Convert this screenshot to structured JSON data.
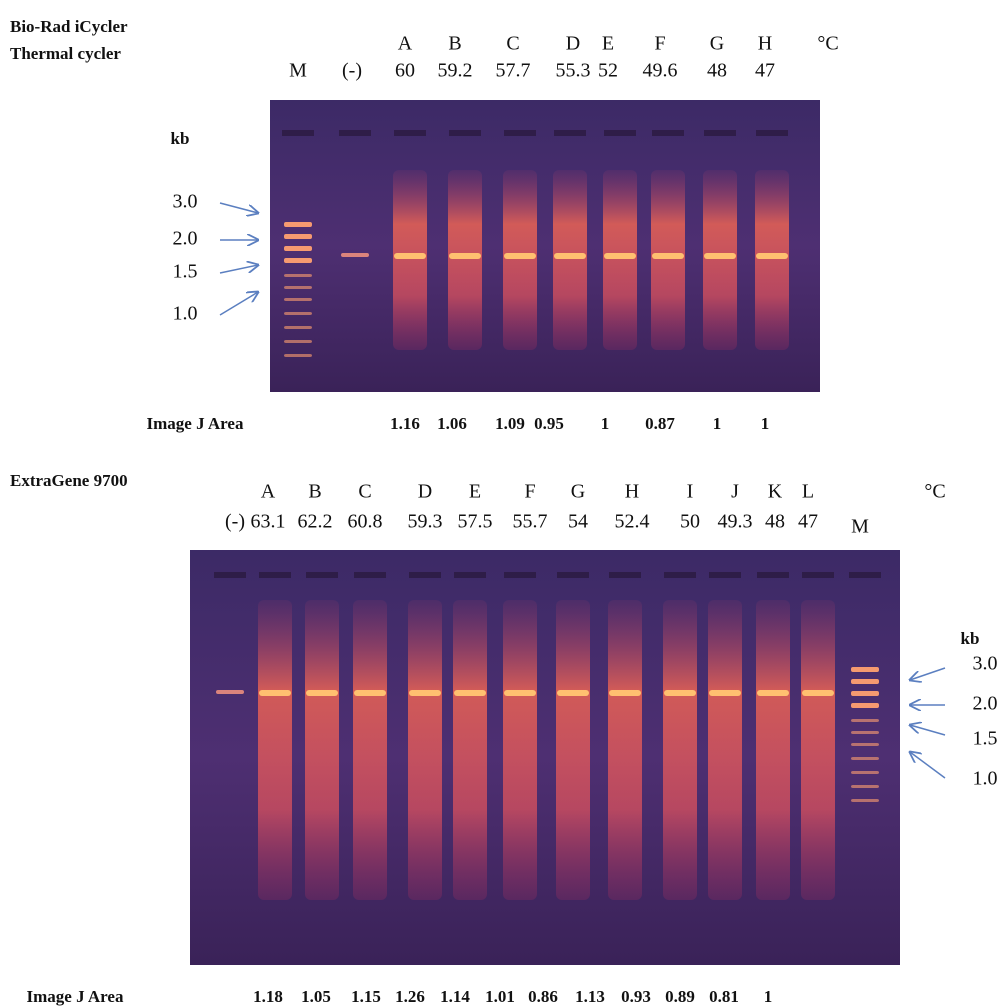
{
  "top": {
    "title_lines": [
      "Bio-Rad iCycler",
      "Thermal cycler"
    ],
    "unit": "°C",
    "lanes": [
      {
        "name": "M"
      },
      {
        "name": "(-)"
      },
      {
        "letter": "A",
        "temp": "60"
      },
      {
        "letter": "B",
        "temp": "59.2"
      },
      {
        "letter": "C",
        "temp": "57.7"
      },
      {
        "letter": "D",
        "temp": "55.3"
      },
      {
        "letter": "E",
        "temp": "52"
      },
      {
        "letter": "F",
        "temp": "49.6"
      },
      {
        "letter": "G",
        "temp": "48"
      },
      {
        "letter": "H",
        "temp": "47"
      }
    ],
    "kb": "kb",
    "markers": [
      "3.0",
      "2.0",
      "1.5",
      "1.0"
    ],
    "area_label": "Image J Area",
    "areas": [
      "1.16",
      "1.06",
      "1.09",
      "0.95",
      "1",
      "0.87",
      "1",
      "1"
    ]
  },
  "bottom": {
    "title": "ExtraGene 9700",
    "unit": "°C",
    "lanes": [
      {
        "name": "(-)"
      },
      {
        "letter": "A",
        "temp": "63.1"
      },
      {
        "letter": "B",
        "temp": "62.2"
      },
      {
        "letter": "C",
        "temp": "60.8"
      },
      {
        "letter": "D",
        "temp": "59.3"
      },
      {
        "letter": "E",
        "temp": "57.5"
      },
      {
        "letter": "F",
        "temp": "55.7"
      },
      {
        "letter": "G",
        "temp": "54"
      },
      {
        "letter": "H",
        "temp": "52.4"
      },
      {
        "letter": "I",
        "temp": "50"
      },
      {
        "letter": "J",
        "temp": "49.3"
      },
      {
        "letter": "K",
        "temp": "48"
      },
      {
        "letter": "L",
        "temp": "47"
      },
      {
        "name": "M"
      }
    ],
    "kb": "kb",
    "markers": [
      "3.0",
      "2.0",
      "1.5",
      "1.0"
    ],
    "area_label": "Image J Area",
    "areas": [
      "1.18",
      "1.05",
      "1.15",
      "1.26",
      "1.14",
      "1.01",
      "0.86",
      "1.13",
      "0.93",
      "0.89",
      "0.81",
      "1"
    ]
  }
}
